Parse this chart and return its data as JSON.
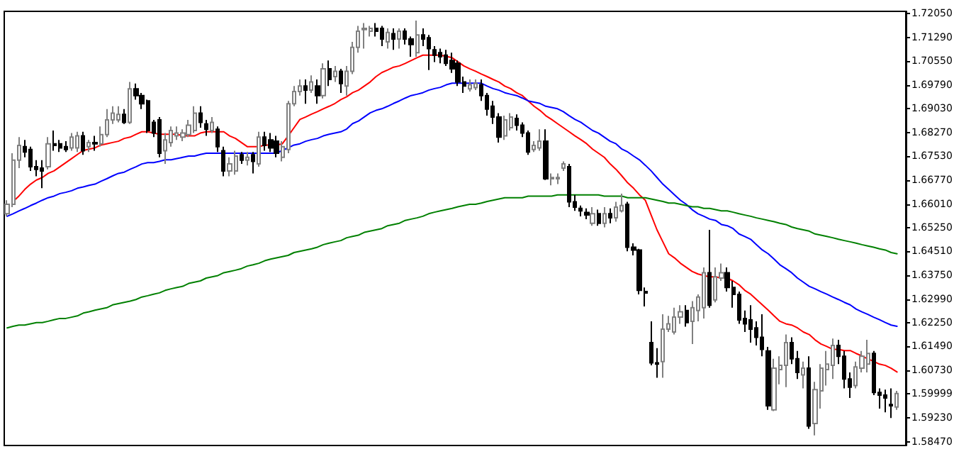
{
  "chart_data": {
    "type": "candlestick",
    "categories": [
      null,
      null,
      null,
      null,
      null,
      null,
      null,
      null,
      null,
      null,
      null,
      null,
      null,
      null,
      null,
      null,
      null,
      null,
      null,
      null,
      null,
      null,
      null,
      null,
      null,
      null,
      null,
      null,
      null,
      null,
      null,
      null,
      null,
      null,
      null,
      null,
      null,
      null,
      null,
      null,
      null,
      null,
      null,
      null,
      null,
      null,
      null,
      null,
      null,
      null,
      null,
      null,
      null,
      null,
      null,
      null,
      null,
      null,
      null,
      null,
      null,
      null,
      null,
      null,
      null,
      null,
      null,
      null,
      null,
      null,
      null,
      null,
      null,
      null,
      null,
      null,
      null,
      null,
      null,
      null,
      null,
      null,
      null,
      null,
      null,
      null,
      null,
      null,
      null,
      null,
      null,
      null,
      null,
      null,
      null,
      null,
      null,
      null,
      null,
      null,
      null,
      null,
      null,
      null,
      null,
      null,
      null,
      null,
      null,
      null,
      null,
      null,
      null,
      null,
      null,
      null,
      null,
      null,
      null,
      null,
      null,
      null,
      null,
      null,
      null,
      null,
      null,
      null,
      null,
      null,
      null,
      null,
      null,
      null,
      null,
      null,
      null,
      null,
      null,
      null,
      null,
      null,
      null,
      null,
      null,
      null,
      null,
      null,
      null,
      null,
      null,
      null,
      null
    ],
    "ohlc": [
      [
        1.657,
        1.6613,
        1.6562,
        1.66
      ],
      [
        1.66,
        1.6762,
        1.6591,
        1.674
      ],
      [
        1.674,
        1.6813,
        1.6715,
        1.6787
      ],
      [
        1.6783,
        1.6804,
        1.6749,
        1.6766
      ],
      [
        1.6774,
        1.6783,
        1.6706,
        1.6719
      ],
      [
        1.6719,
        1.674,
        1.6689,
        1.6711
      ],
      [
        1.6715,
        1.674,
        1.6651,
        1.6706
      ],
      [
        1.6719,
        1.6813,
        1.6711,
        1.6792
      ],
      [
        1.6792,
        1.6834,
        1.677,
        1.6787
      ],
      [
        1.6792,
        1.6804,
        1.6766,
        1.6779
      ],
      [
        1.6783,
        1.68,
        1.6766,
        1.6774
      ],
      [
        1.6779,
        1.6826,
        1.677,
        1.6813
      ],
      [
        1.6779,
        1.683,
        1.6766,
        1.6817
      ],
      [
        1.6817,
        1.683,
        1.6757,
        1.677
      ],
      [
        1.6783,
        1.6804,
        1.6766,
        1.6796
      ],
      [
        1.6796,
        1.6817,
        1.677,
        1.6792
      ],
      [
        1.6792,
        1.6847,
        1.6783,
        1.6821
      ],
      [
        1.6821,
        1.6902,
        1.6813,
        1.6868
      ],
      [
        1.6868,
        1.6911,
        1.6855,
        1.6889
      ],
      [
        1.6868,
        1.6911,
        1.686,
        1.6885
      ],
      [
        1.6885,
        1.6902,
        1.6855,
        1.686
      ],
      [
        1.686,
        1.6988,
        1.6855,
        1.6966
      ],
      [
        1.6966,
        1.6983,
        1.6932,
        1.6945
      ],
      [
        1.6945,
        1.6953,
        1.6902,
        1.6919
      ],
      [
        1.6928,
        1.6932,
        1.6826,
        1.6834
      ],
      [
        1.686,
        1.6868,
        1.6813,
        1.6826
      ],
      [
        1.6868,
        1.6877,
        1.6749,
        1.6762
      ],
      [
        1.677,
        1.6826,
        1.6728,
        1.6804
      ],
      [
        1.6796,
        1.6847,
        1.6783,
        1.6834
      ],
      [
        1.6817,
        1.6847,
        1.6804,
        1.6826
      ],
      [
        1.6813,
        1.6838,
        1.68,
        1.6826
      ],
      [
        1.6821,
        1.6868,
        1.6813,
        1.6851
      ],
      [
        1.6834,
        1.6911,
        1.6826,
        1.6889
      ],
      [
        1.6889,
        1.6911,
        1.6843,
        1.686
      ],
      [
        1.6855,
        1.6868,
        1.6817,
        1.6838
      ],
      [
        1.6834,
        1.6877,
        1.6826,
        1.686
      ],
      [
        1.6838,
        1.6847,
        1.6766,
        1.6783
      ],
      [
        1.677,
        1.6783,
        1.6689,
        1.6706
      ],
      [
        1.6706,
        1.6749,
        1.6689,
        1.6728
      ],
      [
        1.6706,
        1.677,
        1.6694,
        1.6753
      ],
      [
        1.6757,
        1.6766,
        1.6728,
        1.674
      ],
      [
        1.674,
        1.6766,
        1.6723,
        1.6749
      ],
      [
        1.6757,
        1.6766,
        1.6698,
        1.6736
      ],
      [
        1.6728,
        1.683,
        1.6719,
        1.6813
      ],
      [
        1.6813,
        1.683,
        1.677,
        1.6787
      ],
      [
        1.6804,
        1.6826,
        1.6766,
        1.6779
      ],
      [
        1.68,
        1.6817,
        1.6749,
        1.6762
      ],
      [
        1.6749,
        1.68,
        1.6736,
        1.6783
      ],
      [
        1.6774,
        1.6928,
        1.6762,
        1.6919
      ],
      [
        1.6919,
        1.6975,
        1.6911,
        1.6958
      ],
      [
        1.6958,
        1.6996,
        1.6945,
        1.6975
      ],
      [
        1.6975,
        1.6996,
        1.6919,
        1.6962
      ],
      [
        1.6962,
        1.7009,
        1.6953,
        1.6988
      ],
      [
        1.6975,
        1.6996,
        1.6919,
        1.6945
      ],
      [
        1.6945,
        1.7047,
        1.6936,
        1.703
      ],
      [
        1.703,
        1.7056,
        1.6975,
        1.6996
      ],
      [
        1.7005,
        1.7039,
        1.6988,
        1.7022
      ],
      [
        1.7022,
        1.703,
        1.6953,
        1.6983
      ],
      [
        1.6975,
        1.7039,
        1.6945,
        1.7022
      ],
      [
        1.7022,
        1.7115,
        1.7013,
        1.7098
      ],
      [
        1.7098,
        1.7166,
        1.7081,
        1.7149
      ],
      [
        1.7154,
        1.7175,
        1.7094,
        1.7158
      ],
      [
        1.7149,
        1.7166,
        1.7132,
        1.7158
      ],
      [
        1.7158,
        1.7175,
        1.7132,
        1.7149
      ],
      [
        1.7158,
        1.7166,
        1.7102,
        1.7124
      ],
      [
        1.7115,
        1.7158,
        1.7094,
        1.7145
      ],
      [
        1.7141,
        1.7158,
        1.709,
        1.7124
      ],
      [
        1.7124,
        1.7158,
        1.7094,
        1.7149
      ],
      [
        1.7149,
        1.7158,
        1.7107,
        1.7124
      ],
      [
        1.7124,
        1.7132,
        1.7068,
        1.7107
      ],
      [
        1.7081,
        1.7183,
        1.7068,
        1.7137
      ],
      [
        1.7137,
        1.7158,
        1.7102,
        1.7124
      ],
      [
        1.7128,
        1.7137,
        1.7026,
        1.7094
      ],
      [
        1.709,
        1.7102,
        1.7051,
        1.7073
      ],
      [
        1.7081,
        1.7094,
        1.7047,
        1.7068
      ],
      [
        1.7073,
        1.709,
        1.7039,
        1.7047
      ],
      [
        1.7056,
        1.7081,
        1.7017,
        1.703
      ],
      [
        1.7047,
        1.7056,
        1.6975,
        1.6988
      ],
      [
        1.6988,
        1.7005,
        1.6953,
        1.6975
      ],
      [
        1.6966,
        1.6996,
        1.6958,
        1.6979
      ],
      [
        1.697,
        1.6996,
        1.6962,
        1.6983
      ],
      [
        1.6979,
        1.6996,
        1.6928,
        1.6945
      ],
      [
        1.6945,
        1.6953,
        1.6881,
        1.6902
      ],
      [
        1.6911,
        1.6928,
        1.6855,
        1.6877
      ],
      [
        1.6877,
        1.6889,
        1.6796,
        1.6813
      ],
      [
        1.6817,
        1.6881,
        1.6804,
        1.6868
      ],
      [
        1.6843,
        1.6889,
        1.6834,
        1.6877
      ],
      [
        1.6872,
        1.6885,
        1.6834,
        1.6851
      ],
      [
        1.6851,
        1.686,
        1.6813,
        1.6826
      ],
      [
        1.6826,
        1.6834,
        1.6757,
        1.6766
      ],
      [
        1.6774,
        1.68,
        1.6766,
        1.6787
      ],
      [
        1.6779,
        1.6838,
        1.677,
        1.68
      ],
      [
        1.68,
        1.6838,
        1.6677,
        1.6681
      ],
      [
        1.6681,
        1.6698,
        1.666,
        1.6685
      ],
      [
        1.6681,
        1.6698,
        1.6664,
        1.6685
      ],
      [
        1.6715,
        1.6736,
        1.6706,
        1.6728
      ],
      [
        1.6719,
        1.6728,
        1.6591,
        1.6608
      ],
      [
        1.6608,
        1.663,
        1.6579,
        1.6591
      ],
      [
        1.6587,
        1.6596,
        1.6562,
        1.6579
      ],
      [
        1.6574,
        1.6587,
        1.6553,
        1.6566
      ],
      [
        1.654,
        1.6591,
        1.6532,
        1.657
      ],
      [
        1.657,
        1.6583,
        1.6532,
        1.654
      ],
      [
        1.654,
        1.6591,
        1.6527,
        1.657
      ],
      [
        1.657,
        1.6587,
        1.654,
        1.6557
      ],
      [
        1.6557,
        1.6608,
        1.6545,
        1.6591
      ],
      [
        1.6579,
        1.6634,
        1.6574,
        1.6596
      ],
      [
        1.66,
        1.6608,
        1.6451,
        1.6464
      ],
      [
        1.6464,
        1.6476,
        1.6438,
        1.6455
      ],
      [
        1.6455,
        1.6459,
        1.6314,
        1.6327
      ],
      [
        1.6323,
        1.6336,
        1.6276,
        1.6319
      ],
      [
        1.6161,
        1.6229,
        1.6089,
        1.6097
      ],
      [
        1.6097,
        1.6144,
        1.605,
        1.6093
      ],
      [
        1.6101,
        1.6251,
        1.605,
        1.6204
      ],
      [
        1.6204,
        1.6246,
        1.6195,
        1.6221
      ],
      [
        1.6195,
        1.6272,
        1.6187,
        1.6242
      ],
      [
        1.6242,
        1.628,
        1.6221,
        1.6259
      ],
      [
        1.6263,
        1.628,
        1.6212,
        1.6225
      ],
      [
        1.6229,
        1.6293,
        1.6157,
        1.6272
      ],
      [
        1.6263,
        1.6314,
        1.6229,
        1.6306
      ],
      [
        1.6272,
        1.64,
        1.6238,
        1.6383
      ],
      [
        1.6383,
        1.6519,
        1.6272,
        1.628
      ],
      [
        1.6297,
        1.64,
        1.6289,
        1.637
      ],
      [
        1.6366,
        1.6412,
        1.6357,
        1.6383
      ],
      [
        1.6383,
        1.64,
        1.6323,
        1.6336
      ],
      [
        1.6336,
        1.6357,
        1.6272,
        1.6314
      ],
      [
        1.6314,
        1.6323,
        1.6221,
        1.6233
      ],
      [
        1.6238,
        1.6263,
        1.6195,
        1.6221
      ],
      [
        1.6233,
        1.628,
        1.6161,
        1.6204
      ],
      [
        1.6208,
        1.6229,
        1.6152,
        1.6178
      ],
      [
        1.6178,
        1.6251,
        1.6118,
        1.614
      ],
      [
        1.6135,
        1.6148,
        1.5948,
        1.5961
      ],
      [
        1.5948,
        1.611,
        1.5944,
        1.608
      ],
      [
        1.6076,
        1.6118,
        1.6029,
        1.6089
      ],
      [
        1.6089,
        1.6187,
        1.602,
        1.6161
      ],
      [
        1.6161,
        1.6178,
        1.6093,
        1.611
      ],
      [
        1.611,
        1.6135,
        1.6046,
        1.6067
      ],
      [
        1.6059,
        1.6101,
        1.6016,
        1.608
      ],
      [
        1.608,
        1.6118,
        1.5888,
        1.5897
      ],
      [
        1.5905,
        1.6037,
        1.5867,
        1.6012
      ],
      [
        1.6008,
        1.6093,
        1.5952,
        1.608
      ],
      [
        1.6076,
        1.6135,
        1.6025,
        1.6093
      ],
      [
        1.6089,
        1.6174,
        1.6046,
        1.6152
      ],
      [
        1.6152,
        1.617,
        1.6093,
        1.6118
      ],
      [
        1.6118,
        1.6135,
        1.6016,
        1.6046
      ],
      [
        1.6046,
        1.6067,
        1.5986,
        1.602
      ],
      [
        1.6025,
        1.6101,
        1.6016,
        1.6084
      ],
      [
        1.608,
        1.6135,
        1.6067,
        1.6118
      ],
      [
        1.6093,
        1.617,
        1.6067,
        1.6127
      ],
      [
        1.6127,
        1.6135,
        1.5995,
        1.6003
      ],
      [
        1.6003,
        1.6016,
        1.5952,
        1.5995
      ],
      [
        1.5995,
        1.6012,
        1.594,
        1.5986
      ],
      [
        1.5965,
        1.6016,
        1.5922,
        1.5961
      ],
      [
        1.5957,
        1.6008,
        1.5948,
        1.59999
      ]
    ],
    "series": [
      {
        "type": "line",
        "color": "#ff0000",
        "values": [
          null,
          1.6609,
          1.6626,
          1.6647,
          1.6664,
          1.6677,
          1.6685,
          1.6698,
          1.6706,
          1.6719,
          1.6732,
          1.6745,
          1.6758,
          1.6771,
          1.6775,
          1.6779,
          1.6788,
          1.6792,
          1.6796,
          1.68,
          1.6809,
          1.6813,
          1.6822,
          1.683,
          1.683,
          1.6826,
          1.6822,
          1.6822,
          1.6822,
          1.6822,
          1.6817,
          1.6817,
          1.6817,
          1.6826,
          1.683,
          1.683,
          1.683,
          1.683,
          1.6817,
          1.6809,
          1.6796,
          1.6783,
          1.6783,
          1.6783,
          1.6788,
          1.6788,
          1.6788,
          1.6792,
          1.6817,
          1.6843,
          1.6869,
          1.6877,
          1.6886,
          1.6894,
          1.6903,
          1.6911,
          1.692,
          1.6932,
          1.6941,
          1.6954,
          1.6962,
          1.6975,
          1.6988,
          1.7005,
          1.7018,
          1.7026,
          1.7035,
          1.7039,
          1.7047,
          1.7056,
          1.7065,
          1.7073,
          1.7073,
          1.7073,
          1.7073,
          1.7069,
          1.7065,
          1.7052,
          1.7039,
          1.703,
          1.7022,
          1.7013,
          1.7005,
          1.6996,
          1.6988,
          1.6975,
          1.6967,
          1.6954,
          1.6945,
          1.6928,
          1.6911,
          1.6898,
          1.6881,
          1.6869,
          1.6856,
          1.6843,
          1.683,
          1.6817,
          1.6805,
          1.6792,
          1.6775,
          1.6762,
          1.6749,
          1.6728,
          1.6711,
          1.669,
          1.6668,
          1.6651,
          1.663,
          1.6613,
          1.6566,
          1.6519,
          1.6481,
          1.6443,
          1.643,
          1.6413,
          1.64,
          1.6387,
          1.6379,
          1.6374,
          1.637,
          1.637,
          1.6366,
          1.6366,
          1.6357,
          1.6345,
          1.6327,
          1.6315,
          1.6298,
          1.6281,
          1.6264,
          1.6246,
          1.6229,
          1.6221,
          1.6217,
          1.6208,
          1.6195,
          1.6187,
          1.617,
          1.6157,
          1.6149,
          1.614,
          1.614,
          1.6136,
          1.6136,
          1.6127,
          1.6119,
          1.611,
          1.6102,
          1.6093,
          1.6089,
          1.608,
          1.6068
        ]
      },
      {
        "type": "line",
        "color": "#0000ff",
        "values": [
          1.6562,
          1.657,
          1.6579,
          1.6587,
          1.6596,
          1.6604,
          1.6613,
          1.6621,
          1.6626,
          1.6634,
          1.6638,
          1.6643,
          1.6651,
          1.6655,
          1.666,
          1.6664,
          1.6673,
          1.6681,
          1.669,
          1.6698,
          1.6702,
          1.6711,
          1.6719,
          1.6728,
          1.6732,
          1.6732,
          1.6736,
          1.6741,
          1.6741,
          1.6745,
          1.6749,
          1.6753,
          1.6753,
          1.6758,
          1.6762,
          1.6762,
          1.6762,
          1.6762,
          1.6762,
          1.6762,
          1.6762,
          1.6762,
          1.6762,
          1.6762,
          1.6762,
          1.6762,
          1.6762,
          1.6771,
          1.6779,
          1.6788,
          1.6792,
          1.68,
          1.6805,
          1.6809,
          1.6817,
          1.6822,
          1.6826,
          1.683,
          1.6839,
          1.6856,
          1.6864,
          1.6877,
          1.689,
          1.6898,
          1.6903,
          1.6911,
          1.692,
          1.6928,
          1.6937,
          1.6945,
          1.6949,
          1.6954,
          1.6962,
          1.6967,
          1.6971,
          1.6979,
          1.6984,
          1.6984,
          1.6984,
          1.6984,
          1.6984,
          1.6984,
          1.6975,
          1.6967,
          1.6962,
          1.6954,
          1.6949,
          1.6945,
          1.6937,
          1.6928,
          1.6924,
          1.692,
          1.6911,
          1.6907,
          1.6903,
          1.6894,
          1.6881,
          1.6869,
          1.686,
          1.6847,
          1.6834,
          1.6826,
          1.6813,
          1.68,
          1.6792,
          1.6775,
          1.6766,
          1.6753,
          1.6741,
          1.6724,
          1.6706,
          1.6685,
          1.6664,
          1.6647,
          1.663,
          1.6613,
          1.66,
          1.6583,
          1.657,
          1.6562,
          1.6553,
          1.6549,
          1.6536,
          1.6532,
          1.6523,
          1.6506,
          1.6498,
          1.6489,
          1.6472,
          1.6455,
          1.6443,
          1.6426,
          1.6408,
          1.6396,
          1.6383,
          1.6366,
          1.6353,
          1.634,
          1.6332,
          1.6323,
          1.6315,
          1.6306,
          1.6298,
          1.6289,
          1.6281,
          1.6268,
          1.6259,
          1.6251,
          1.6242,
          1.6234,
          1.6225,
          1.6217,
          1.6213
        ]
      },
      {
        "type": "line",
        "color": "#008000",
        "values": [
          1.6208,
          1.6213,
          1.6217,
          1.6217,
          1.6221,
          1.6225,
          1.6225,
          1.6229,
          1.6234,
          1.6238,
          1.6238,
          1.6242,
          1.6246,
          1.6255,
          1.6259,
          1.6264,
          1.6268,
          1.6272,
          1.6281,
          1.6285,
          1.6289,
          1.6293,
          1.6298,
          1.6306,
          1.631,
          1.6315,
          1.6319,
          1.6327,
          1.6332,
          1.6336,
          1.634,
          1.6349,
          1.6353,
          1.6357,
          1.6366,
          1.637,
          1.6374,
          1.6383,
          1.6387,
          1.6391,
          1.6396,
          1.6404,
          1.6408,
          1.6413,
          1.6421,
          1.6426,
          1.643,
          1.6434,
          1.6438,
          1.6447,
          1.6451,
          1.6455,
          1.6459,
          1.6464,
          1.6472,
          1.6477,
          1.6481,
          1.6485,
          1.6494,
          1.6498,
          1.6502,
          1.6511,
          1.6515,
          1.6519,
          1.6523,
          1.6532,
          1.6536,
          1.654,
          1.6549,
          1.6553,
          1.6557,
          1.6562,
          1.657,
          1.6575,
          1.6579,
          1.6583,
          1.6587,
          1.6592,
          1.6596,
          1.66,
          1.66,
          1.6604,
          1.6609,
          1.6613,
          1.6617,
          1.6621,
          1.6621,
          1.6621,
          1.6621,
          1.6626,
          1.6626,
          1.6626,
          1.6626,
          1.6626,
          1.663,
          1.663,
          1.663,
          1.663,
          1.663,
          1.663,
          1.663,
          1.663,
          1.6626,
          1.6626,
          1.6626,
          1.6626,
          1.6621,
          1.6621,
          1.6621,
          1.6621,
          1.6617,
          1.6613,
          1.6609,
          1.6604,
          1.6604,
          1.66,
          1.6596,
          1.6592,
          1.6592,
          1.6587,
          1.6587,
          1.6583,
          1.6579,
          1.6579,
          1.6575,
          1.657,
          1.6566,
          1.6562,
          1.6557,
          1.6553,
          1.6549,
          1.6545,
          1.654,
          1.6536,
          1.6528,
          1.6523,
          1.6519,
          1.6515,
          1.6506,
          1.6502,
          1.6498,
          1.6494,
          1.6489,
          1.6485,
          1.6481,
          1.6477,
          1.6472,
          1.6468,
          1.6464,
          1.6459,
          1.6455,
          1.6447,
          1.6443
        ]
      }
    ],
    "ylim": [
      1.5835,
      1.7212
    ],
    "yticks": [
      {
        "value": 1.7205,
        "label": "1.72050"
      },
      {
        "value": 1.7129,
        "label": "1.71290"
      },
      {
        "value": 1.7055,
        "label": "1.70550"
      },
      {
        "value": 1.6979,
        "label": "1.69790"
      },
      {
        "value": 1.6903,
        "label": "1.69030"
      },
      {
        "value": 1.6827,
        "label": "1.68270"
      },
      {
        "value": 1.6753,
        "label": "1.67530"
      },
      {
        "value": 1.6677,
        "label": "1.66770"
      },
      {
        "value": 1.6601,
        "label": "1.66010"
      },
      {
        "value": 1.6525,
        "label": "1.65250"
      },
      {
        "value": 1.6451,
        "label": "1.64510"
      },
      {
        "value": 1.6375,
        "label": "1.63750"
      },
      {
        "value": 1.6299,
        "label": "1.62990"
      },
      {
        "value": 1.6225,
        "label": "1.62250"
      },
      {
        "value": 1.6149,
        "label": "1.61490"
      },
      {
        "value": 1.6073,
        "label": "1.60730"
      },
      {
        "value": 1.59999,
        "label": "1.59999"
      },
      {
        "value": 1.5923,
        "label": "1.59230"
      },
      {
        "value": 1.5847,
        "label": "1.58470"
      }
    ],
    "tick_labels": "y",
    "line_style": "solid"
  }
}
